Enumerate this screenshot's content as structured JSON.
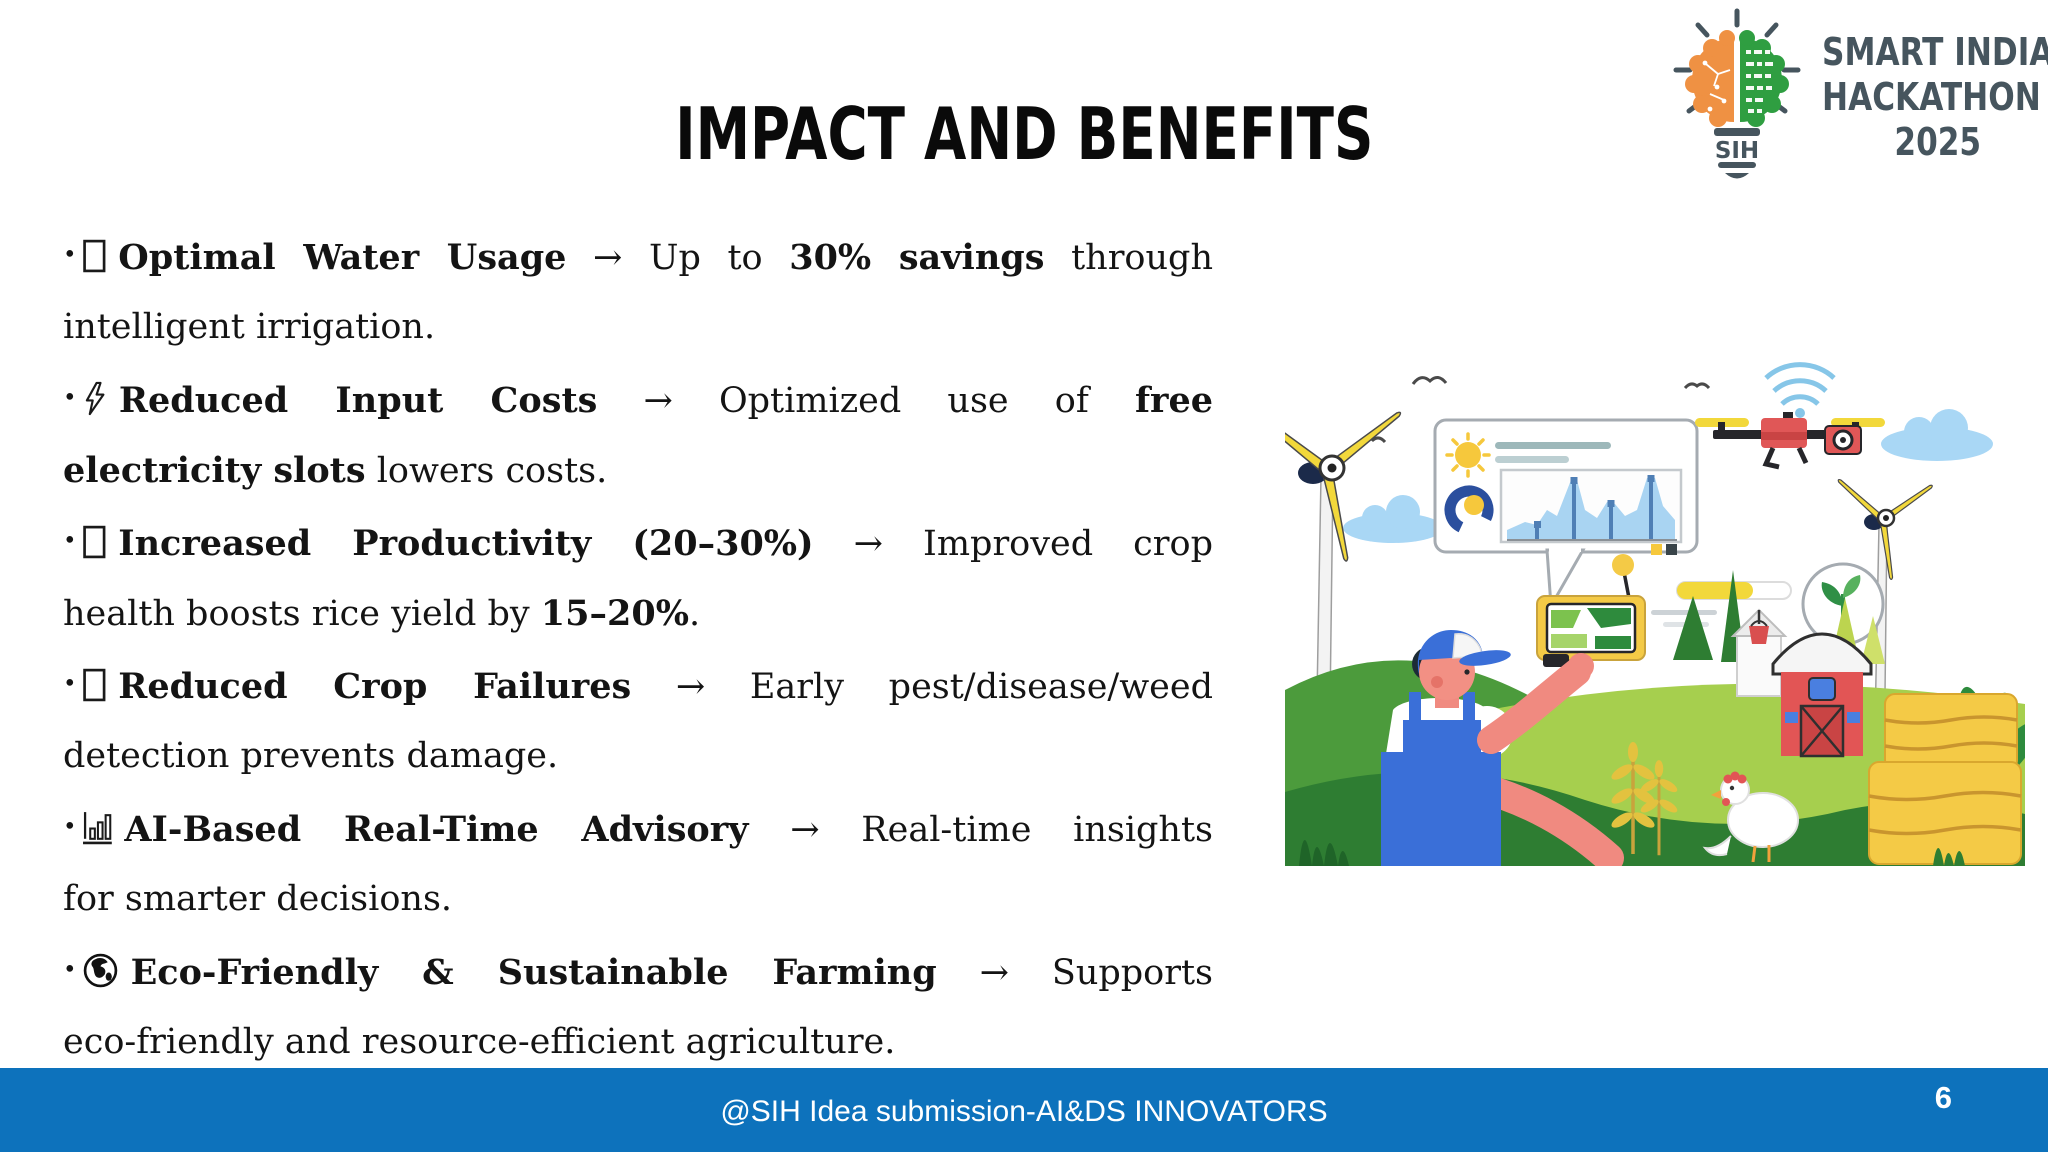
{
  "slide": {
    "title": "IMPACT AND BENEFITS",
    "bullet_char": "•",
    "footer_text": "@SIH Idea submission-AI&DS INNOVATORS",
    "page_number": "6"
  },
  "logo": {
    "line1": "SMART INDIA",
    "line2": "HACKATHON",
    "line3": "2025",
    "badge_text": "SIH",
    "colors": {
      "orange": "#ef9143",
      "green": "#2f9e41",
      "slate": "#46555e"
    }
  },
  "colors": {
    "footer_blue": "#0d72bc",
    "body_text": "#141414"
  },
  "bullets": [
    {
      "icon": "missing-glyph-icon",
      "line1": [
        {
          "t": "Optimal Water Usage",
          "b": true
        },
        {
          "t": " → Up to ",
          "b": false
        },
        {
          "t": "30% savings",
          "b": true
        },
        {
          "t": " through",
          "b": false
        }
      ],
      "line2": [
        {
          "t": "intelligent irrigation.",
          "b": false
        }
      ]
    },
    {
      "icon": "lightning-icon",
      "line1": [
        {
          "t": "Reduced Input Costs",
          "b": true
        },
        {
          "t": " → Optimized use of ",
          "b": false
        },
        {
          "t": "free",
          "b": true
        }
      ],
      "line2": [
        {
          "t": "electricity slots",
          "b": true
        },
        {
          "t": " lowers costs.",
          "b": false
        }
      ]
    },
    {
      "icon": "missing-glyph-icon",
      "line1": [
        {
          "t": "Increased Productivity (20–30%)",
          "b": true
        },
        {
          "t": " → Improved crop",
          "b": false
        }
      ],
      "line2": [
        {
          "t": "health boosts rice yield by ",
          "b": false
        },
        {
          "t": "15–20%",
          "b": true
        },
        {
          "t": ".",
          "b": false
        }
      ]
    },
    {
      "icon": "missing-glyph-icon",
      "line1": [
        {
          "t": "Reduced Crop Failures",
          "b": true
        },
        {
          "t": " → Early pest/disease/weed",
          "b": false
        }
      ],
      "line2": [
        {
          "t": "detection prevents damage.",
          "b": false
        }
      ]
    },
    {
      "icon": "bar-chart-icon",
      "line1": [
        {
          "t": "AI-Based Real-Time Advisory",
          "b": true
        },
        {
          "t": " → Real-time insights",
          "b": false
        }
      ],
      "line2": [
        {
          "t": "for smarter decisions.",
          "b": false
        }
      ]
    },
    {
      "icon": "globe-icon",
      "line1": [
        {
          "t": "Eco-Friendly & Sustainable Farming",
          "b": true
        },
        {
          "t": " → Supports",
          "b": false
        }
      ],
      "line2": [
        {
          "t": "eco-friendly and resource-efficient agriculture.",
          "b": false
        }
      ]
    }
  ],
  "illustration": {
    "icons": [
      "wind-turbine",
      "small-wind-turbine",
      "clouds",
      "birds",
      "dashboard-speech-bubble",
      "sun",
      "donut-chart",
      "area-chart",
      "camera-drone",
      "wifi-signal",
      "progress-bar",
      "sprout-badge",
      "farmer-with-remote",
      "field-map-remote",
      "farm-house",
      "red-barn",
      "wheat-stalks",
      "chicken",
      "hay-bales",
      "leafy-plant",
      "grass"
    ]
  }
}
